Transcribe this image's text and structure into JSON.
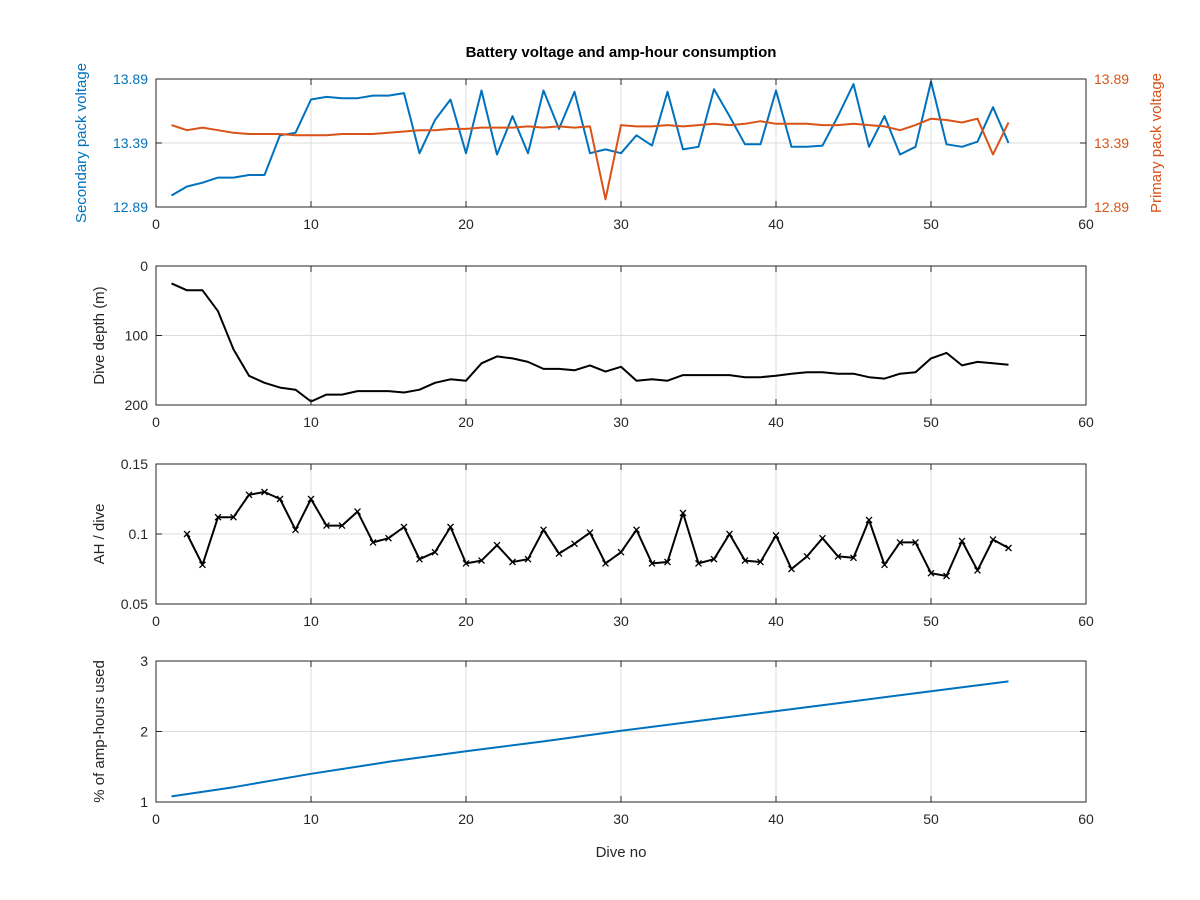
{
  "colors": {
    "blue": "#0072bd",
    "orange": "#d95319",
    "black": "#000000",
    "axis": "#262626"
  },
  "chart_data": [
    {
      "type": "line",
      "title": "Battery voltage and amp-hour consumption",
      "xlim": [
        0,
        60
      ],
      "xticks": [
        0,
        10,
        20,
        30,
        40,
        50,
        60
      ],
      "ylabel": "Secondary pack voltage",
      "ylim": [
        12.89,
        13.89
      ],
      "yticks": [
        12.89,
        13.39,
        13.89
      ],
      "ylabel_right": "Primary pack voltage",
      "ylim_right": [
        12.89,
        13.89
      ],
      "yticks_right": [
        12.89,
        13.39,
        13.89
      ],
      "grid": true,
      "series": [
        {
          "axis": "left",
          "color": "#0072bd",
          "x": [
            1,
            2,
            3,
            4,
            5,
            6,
            7,
            8,
            9,
            10,
            11,
            12,
            13,
            14,
            15,
            16,
            17,
            18,
            19,
            20,
            21,
            22,
            23,
            24,
            25,
            26,
            27,
            28,
            29,
            30,
            31,
            32,
            33,
            34,
            35,
            36,
            37,
            38,
            39,
            40,
            41,
            42,
            43,
            44,
            45,
            46,
            47,
            48,
            49,
            50,
            51,
            52,
            53,
            54,
            55
          ],
          "values": [
            12.98,
            13.05,
            13.08,
            13.12,
            13.12,
            13.14,
            13.14,
            13.45,
            13.47,
            13.73,
            13.75,
            13.74,
            13.74,
            13.76,
            13.76,
            13.78,
            13.31,
            13.57,
            13.73,
            13.31,
            13.8,
            13.3,
            13.6,
            13.31,
            13.8,
            13.5,
            13.79,
            13.31,
            13.34,
            13.31,
            13.45,
            13.37,
            13.79,
            13.34,
            13.36,
            13.81,
            13.6,
            13.38,
            13.38,
            13.8,
            13.36,
            13.36,
            13.37,
            13.6,
            13.85,
            13.36,
            13.6,
            13.3,
            13.36,
            13.87,
            13.38,
            13.36,
            13.4,
            13.67,
            13.39
          ]
        },
        {
          "axis": "right",
          "color": "#d95319",
          "x": [
            1,
            2,
            3,
            4,
            5,
            6,
            7,
            8,
            9,
            10,
            11,
            12,
            13,
            14,
            15,
            16,
            17,
            18,
            19,
            20,
            21,
            22,
            23,
            24,
            25,
            26,
            27,
            28,
            29,
            30,
            31,
            32,
            33,
            34,
            35,
            36,
            37,
            38,
            39,
            40,
            41,
            42,
            43,
            44,
            45,
            46,
            47,
            48,
            49,
            50,
            51,
            52,
            53,
            54,
            55
          ],
          "values": [
            13.53,
            13.49,
            13.51,
            13.49,
            13.47,
            13.46,
            13.46,
            13.46,
            13.45,
            13.45,
            13.45,
            13.46,
            13.46,
            13.46,
            13.47,
            13.48,
            13.49,
            13.49,
            13.5,
            13.5,
            13.51,
            13.51,
            13.51,
            13.52,
            13.51,
            13.52,
            13.51,
            13.52,
            12.95,
            13.53,
            13.52,
            13.52,
            13.53,
            13.52,
            13.53,
            13.54,
            13.53,
            13.54,
            13.56,
            13.54,
            13.54,
            13.54,
            13.53,
            13.53,
            13.54,
            13.53,
            13.52,
            13.49,
            13.53,
            13.58,
            13.57,
            13.55,
            13.58,
            13.3,
            13.55
          ]
        }
      ]
    },
    {
      "type": "line",
      "xlim": [
        0,
        60
      ],
      "xticks": [
        0,
        10,
        20,
        30,
        40,
        50,
        60
      ],
      "ylabel": "Dive depth (m)",
      "ylim": [
        0,
        200
      ],
      "yticks": [
        0,
        100,
        200
      ],
      "reversed_y": true,
      "grid": true,
      "series": [
        {
          "color": "#000000",
          "x": [
            1,
            2,
            3,
            4,
            5,
            6,
            7,
            8,
            9,
            10,
            11,
            12,
            13,
            14,
            15,
            16,
            17,
            18,
            19,
            20,
            21,
            22,
            23,
            24,
            25,
            26,
            27,
            28,
            29,
            30,
            31,
            32,
            33,
            34,
            35,
            36,
            37,
            38,
            39,
            40,
            41,
            42,
            43,
            44,
            45,
            46,
            47,
            48,
            49,
            50,
            51,
            52,
            53,
            54,
            55
          ],
          "values": [
            25,
            35,
            35,
            65,
            120,
            158,
            168,
            175,
            178,
            195,
            185,
            185,
            180,
            180,
            180,
            182,
            178,
            168,
            163,
            165,
            140,
            130,
            133,
            138,
            148,
            148,
            150,
            143,
            152,
            145,
            165,
            163,
            165,
            157,
            157,
            157,
            157,
            160,
            160,
            158,
            155,
            153,
            153,
            155,
            155,
            160,
            162,
            155,
            153,
            133,
            125,
            143,
            138,
            140,
            142
          ]
        }
      ]
    },
    {
      "type": "line",
      "xlim": [
        0,
        60
      ],
      "xticks": [
        0,
        10,
        20,
        30,
        40,
        50,
        60
      ],
      "ylabel": "AH / dive",
      "ylim": [
        0.05,
        0.15
      ],
      "yticks": [
        0.05,
        0.1,
        0.15
      ],
      "ytick_labels": [
        "0.05",
        "0.1",
        "0.15"
      ],
      "grid": true,
      "series": [
        {
          "color": "#000000",
          "marker": "x",
          "x": [
            2,
            3,
            4,
            5,
            6,
            7,
            8,
            9,
            10,
            11,
            12,
            13,
            14,
            15,
            16,
            17,
            18,
            19,
            20,
            21,
            22,
            23,
            24,
            25,
            26,
            27,
            28,
            29,
            30,
            31,
            32,
            33,
            34,
            35,
            36,
            37,
            38,
            39,
            40,
            41,
            42,
            43,
            44,
            45,
            46,
            47,
            48,
            49,
            50,
            51,
            52,
            53,
            54,
            55
          ],
          "values": [
            0.1,
            0.078,
            0.112,
            0.112,
            0.128,
            0.13,
            0.125,
            0.103,
            0.125,
            0.106,
            0.106,
            0.116,
            0.094,
            0.097,
            0.105,
            0.082,
            0.087,
            0.105,
            0.079,
            0.081,
            0.092,
            0.08,
            0.082,
            0.103,
            0.086,
            0.093,
            0.101,
            0.079,
            0.087,
            0.103,
            0.079,
            0.08,
            0.115,
            0.079,
            0.082,
            0.1,
            0.081,
            0.08,
            0.099,
            0.075,
            0.084,
            0.097,
            0.084,
            0.083,
            0.11,
            0.078,
            0.094,
            0.094,
            0.072,
            0.07,
            0.095,
            0.074,
            0.096,
            0.09
          ]
        }
      ]
    },
    {
      "type": "line",
      "xlim": [
        0,
        60
      ],
      "xticks": [
        0,
        10,
        20,
        30,
        40,
        50,
        60
      ],
      "xlabel": "Dive no",
      "ylabel": "% of amp-hours used",
      "ylim": [
        1,
        3
      ],
      "yticks": [
        1,
        2,
        3
      ],
      "grid": true,
      "series": [
        {
          "color": "#0072bd",
          "x": [
            1,
            5,
            10,
            15,
            20,
            25,
            30,
            35,
            40,
            45,
            50,
            55
          ],
          "values": [
            1.08,
            1.21,
            1.4,
            1.57,
            1.72,
            1.86,
            2.01,
            2.15,
            2.29,
            2.43,
            2.57,
            2.71
          ]
        }
      ]
    }
  ]
}
